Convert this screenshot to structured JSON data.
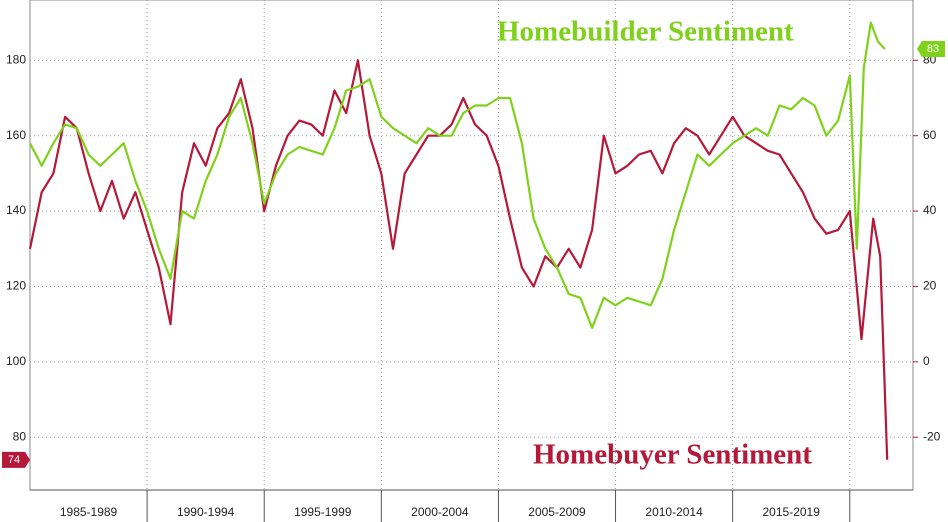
{
  "chart_data": {
    "type": "line",
    "xlim": [
      1985,
      2022.7
    ],
    "x_separators": [
      1990,
      1995,
      2000,
      2005,
      2010,
      2015,
      2020
    ],
    "x_labels": [
      {
        "value": 1987.5,
        "label": "1985-1989"
      },
      {
        "value": 1992.5,
        "label": "1990-1994"
      },
      {
        "value": 1997.5,
        "label": "1995-1999"
      },
      {
        "value": 2002.5,
        "label": "2000-2004"
      },
      {
        "value": 2007.5,
        "label": "2005-2009"
      },
      {
        "value": 2012.5,
        "label": "2010-2014"
      },
      {
        "value": 2017.5,
        "label": "2015-2019"
      }
    ],
    "ylim": [
      66,
      196
    ],
    "yticks": [
      80,
      100,
      120,
      140,
      160,
      180
    ],
    "y2lim": [
      -34,
      96
    ],
    "y2ticks": [
      -20,
      0,
      20,
      40,
      60,
      80
    ],
    "grid": true,
    "series": [
      {
        "name": "Homebuyer Sentiment",
        "color": "#b5193a",
        "axis": "y",
        "x": [
          1985,
          1985.5,
          1986,
          1986.5,
          1987,
          1987.5,
          1988,
          1988.5,
          1989,
          1989.5,
          1990,
          1990.5,
          1991,
          1991.5,
          1992,
          1992.5,
          1993,
          1993.5,
          1994,
          1994.5,
          1995,
          1995.5,
          1996,
          1996.5,
          1997,
          1997.5,
          1998,
          1998.5,
          1999,
          1999.5,
          2000,
          2000.5,
          2001,
          2001.5,
          2002,
          2002.5,
          2003,
          2003.5,
          2004,
          2004.5,
          2005,
          2005.5,
          2006,
          2006.5,
          2007,
          2007.5,
          2008,
          2008.5,
          2009,
          2009.5,
          2010,
          2010.5,
          2011,
          2011.5,
          2012,
          2012.5,
          2013,
          2013.5,
          2014,
          2014.5,
          2015,
          2015.5,
          2016,
          2016.5,
          2017,
          2017.5,
          2018,
          2018.5,
          2019,
          2019.5,
          2020,
          2020.5,
          2021,
          2021.3,
          2021.6
        ],
        "values": [
          130,
          145,
          150,
          165,
          162,
          150,
          140,
          148,
          138,
          145,
          135,
          125,
          110,
          145,
          158,
          152,
          162,
          166,
          175,
          162,
          140,
          152,
          160,
          164,
          163,
          160,
          172,
          166,
          180,
          160,
          150,
          130,
          150,
          155,
          160,
          160,
          163,
          170,
          163,
          160,
          152,
          138,
          125,
          120,
          128,
          125,
          130,
          125,
          135,
          160,
          150,
          152,
          155,
          156,
          150,
          158,
          162,
          160,
          155,
          160,
          165,
          160,
          158,
          156,
          155,
          150,
          145,
          138,
          134,
          135,
          140,
          106,
          138,
          128,
          74
        ]
      },
      {
        "name": "Homebuilder Sentiment",
        "color": "#7fd11b",
        "axis": "y2",
        "x": [
          1985,
          1985.5,
          1986,
          1986.5,
          1987,
          1987.5,
          1988,
          1988.5,
          1989,
          1989.5,
          1990,
          1990.5,
          1991,
          1991.5,
          1992,
          1992.5,
          1993,
          1993.5,
          1994,
          1994.5,
          1995,
          1995.5,
          1996,
          1996.5,
          1997,
          1997.5,
          1998,
          1998.5,
          1999,
          1999.5,
          2000,
          2000.5,
          2001,
          2001.5,
          2002,
          2002.5,
          2003,
          2003.5,
          2004,
          2004.5,
          2005,
          2005.5,
          2006,
          2006.5,
          2007,
          2007.5,
          2008,
          2008.5,
          2009,
          2009.5,
          2010,
          2010.5,
          2011,
          2011.5,
          2012,
          2012.5,
          2013,
          2013.5,
          2014,
          2014.5,
          2015,
          2015.5,
          2016,
          2016.5,
          2017,
          2017.5,
          2018,
          2018.5,
          2019,
          2019.5,
          2020,
          2020.3,
          2020.6,
          2020.9,
          2021.2,
          2021.5
        ],
        "values": [
          58,
          52,
          58,
          63,
          62,
          55,
          52,
          55,
          58,
          48,
          40,
          30,
          22,
          40,
          38,
          48,
          55,
          65,
          70,
          58,
          42,
          50,
          55,
          57,
          56,
          55,
          62,
          72,
          73,
          75,
          65,
          62,
          60,
          58,
          62,
          60,
          60,
          66,
          68,
          68,
          70,
          70,
          58,
          38,
          30,
          25,
          18,
          17,
          9,
          17,
          15,
          17,
          16,
          15,
          22,
          35,
          45,
          55,
          52,
          55,
          58,
          60,
          62,
          60,
          68,
          67,
          70,
          68,
          60,
          64,
          76,
          30,
          78,
          90,
          85,
          83
        ]
      }
    ]
  }
}
